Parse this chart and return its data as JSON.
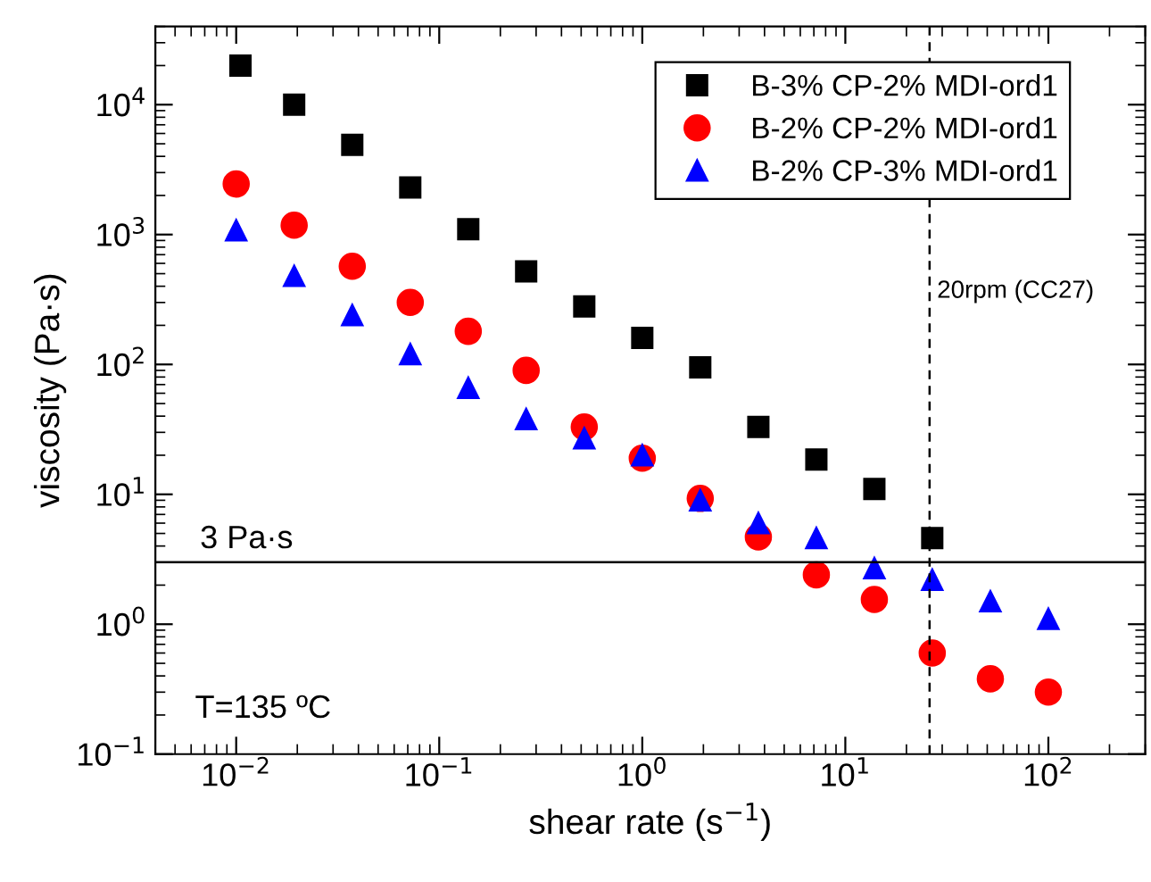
{
  "chart_data": {
    "type": "scatter",
    "xlabel": "shear rate (s$^{−1}$)",
    "ylabel": "viscosity (Pa·s)",
    "log": "xy",
    "xlim": [
      0.004,
      300
    ],
    "ylim": [
      0.1,
      40000
    ],
    "xticks": [
      {
        "value": 0.01,
        "label": "10$^{−2}$"
      },
      {
        "value": 0.1,
        "label": "10$^{−1}$"
      },
      {
        "value": 1,
        "label": "10$^{0}$"
      },
      {
        "value": 10,
        "label": "10$^{1}$"
      },
      {
        "value": 100,
        "label": "10$^{2}$"
      }
    ],
    "yticks": [
      {
        "value": 0.1,
        "label": "10$^{−1}$"
      },
      {
        "value": 1,
        "label": "10$^{0}$"
      },
      {
        "value": 10,
        "label": "10$^{1}$"
      },
      {
        "value": 100,
        "label": "10$^{2}$"
      },
      {
        "value": 1000,
        "label": "10$^{3}$"
      },
      {
        "value": 10000,
        "label": "10$^{4}$"
      }
    ],
    "grid": false,
    "legend": "top right",
    "series": [
      {
        "name": "B-3% CP-2% MDI-ord1",
        "color": "#000000",
        "marker": "square",
        "x": [
          0.0105,
          0.0193,
          0.0373,
          0.072,
          0.139,
          0.268,
          0.518,
          1,
          1.93,
          3.73,
          7.2,
          13.9,
          26.8
        ],
        "values": [
          20000,
          10000,
          4900,
          2300,
          1100,
          520,
          280,
          160,
          95,
          33,
          18.5,
          11,
          4.6
        ]
      },
      {
        "name": "B-2% CP-2% MDI-ord1",
        "color": "#ff0000",
        "marker": "circle",
        "x": [
          0.01,
          0.0193,
          0.0373,
          0.072,
          0.139,
          0.268,
          0.518,
          1,
          1.93,
          3.73,
          7.2,
          13.9,
          26.8,
          51.8,
          100
        ],
        "values": [
          2450,
          1180,
          570,
          300,
          180,
          90,
          33,
          19,
          9.3,
          4.7,
          2.4,
          1.55,
          0.6,
          0.38,
          0.3
        ]
      },
      {
        "name": "B-2% CP-3% MDI-ord1",
        "color": "#0000ff",
        "marker": "triangle",
        "x": [
          0.01,
          0.0193,
          0.0373,
          0.072,
          0.139,
          0.268,
          0.518,
          1,
          1.93,
          3.73,
          7.2,
          13.9,
          26.8,
          51.8,
          100
        ],
        "values": [
          1080,
          480,
          240,
          120,
          66,
          38,
          27,
          20,
          9,
          6,
          4.6,
          2.7,
          2.2,
          1.5,
          1.1
        ]
      }
    ],
    "ref_lines": [
      {
        "axis": "y",
        "value": 3,
        "label": "3 Pa·s",
        "color": "#000000",
        "line_style": "solid"
      },
      {
        "axis": "x",
        "value": 26,
        "label": "20rpm (CC27)",
        "color": "#000000",
        "line_style": "dashed"
      }
    ],
    "annotations": [
      "T=135 ºC"
    ]
  }
}
